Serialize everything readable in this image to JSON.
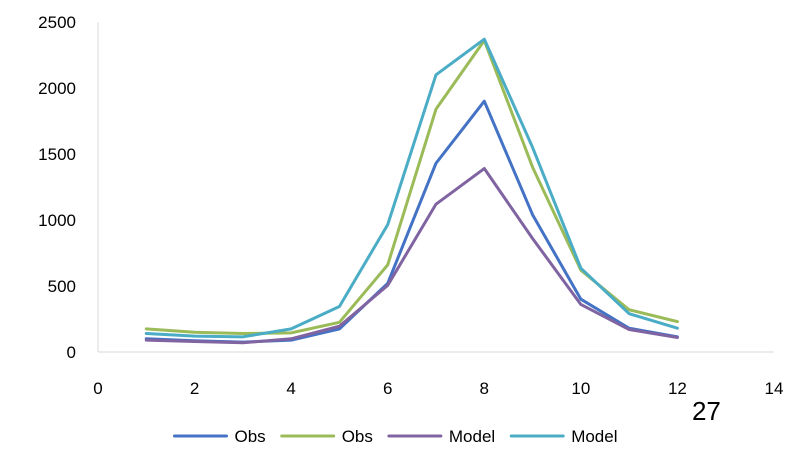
{
  "chart_data": {
    "type": "line",
    "title": "",
    "xlabel": "",
    "ylabel": "",
    "xlim": [
      0,
      14
    ],
    "ylim": [
      0,
      2500
    ],
    "x_ticks": [
      0,
      2,
      4,
      6,
      8,
      10,
      12,
      14
    ],
    "y_ticks": [
      0,
      500,
      1000,
      1500,
      2000,
      2500
    ],
    "x_tick_labels": [
      "0",
      "2",
      "4",
      "6",
      "8",
      "10",
      "12",
      "14"
    ],
    "y_tick_labels": [
      "0",
      "500",
      "1000",
      "1500",
      "2000",
      "2500"
    ],
    "grid": false,
    "legend_position": "bottom",
    "x": [
      1,
      2,
      3,
      4,
      5,
      6,
      7,
      8,
      9,
      10,
      11,
      12
    ],
    "series": [
      {
        "name": "Obs",
        "color": "#4472C4",
        "values": [
          100,
          85,
          75,
          90,
          175,
          520,
          1430,
          1900,
          1040,
          400,
          180,
          115
        ]
      },
      {
        "name": "Obs",
        "color": "#9BBB59",
        "values": [
          175,
          150,
          140,
          145,
          225,
          660,
          1840,
          2360,
          1400,
          620,
          320,
          230
        ]
      },
      {
        "name": "Model",
        "color": "#8064A2",
        "values": [
          90,
          80,
          70,
          100,
          195,
          505,
          1120,
          1390,
          860,
          360,
          170,
          110
        ]
      },
      {
        "name": "Model",
        "color": "#4BACC6",
        "values": [
          140,
          120,
          115,
          175,
          345,
          965,
          2100,
          2370,
          1550,
          635,
          290,
          180
        ]
      }
    ],
    "annotations": [
      {
        "text": "27",
        "x": 12.6
      }
    ]
  },
  "colors": {
    "axis": "#D9D9D9",
    "text": "#000000",
    "background": "#FFFFFF"
  }
}
